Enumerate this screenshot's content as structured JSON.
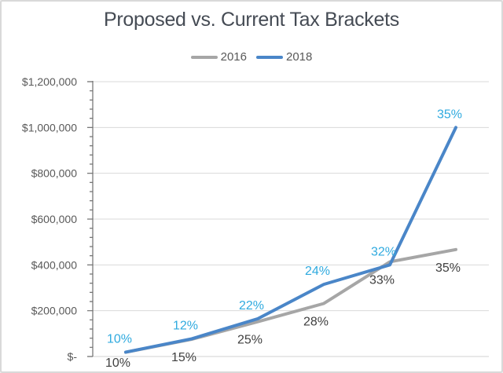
{
  "chart_data": {
    "type": "line",
    "title": "Proposed vs. Current Tax Brackets",
    "legend_position": "top",
    "grid": "horizontal",
    "x_axis": {
      "labels_visible": false
    },
    "y_axis": {
      "min": 0,
      "max": 1200000,
      "major_unit": 200000,
      "minor_unit": 40000,
      "tick_labels": [
        "$-",
        "$200,000",
        "$400,000",
        "$600,000",
        "$800,000",
        "$1,000,000",
        "$1,200,000"
      ]
    },
    "series": [
      {
        "name": "2016",
        "color": "#A6A6A6",
        "label_color": "#404040",
        "label_position": "below",
        "values": [
          18550,
          75300,
          151900,
          231450,
          413350,
          466950
        ],
        "point_labels": [
          "10%",
          "15%",
          "25%",
          "28%",
          "33%",
          "35%"
        ]
      },
      {
        "name": "2018",
        "color": "#4A86C8",
        "label_color": "#2FAADF",
        "label_position": "above",
        "values": [
          19050,
          77400,
          165000,
          315000,
          400000,
          1000000
        ],
        "point_labels": [
          "10%",
          "12%",
          "22%",
          "24%",
          "32%",
          "35%"
        ]
      }
    ]
  },
  "colors": {
    "background": "#FFFFFF",
    "border": "#D9D9D9",
    "title": "#454B54",
    "axis_text": "#595959",
    "axis_line": "#6E6E6E",
    "x_axis_line": "#D0D0D0",
    "gridline": "#D9D9D9"
  }
}
